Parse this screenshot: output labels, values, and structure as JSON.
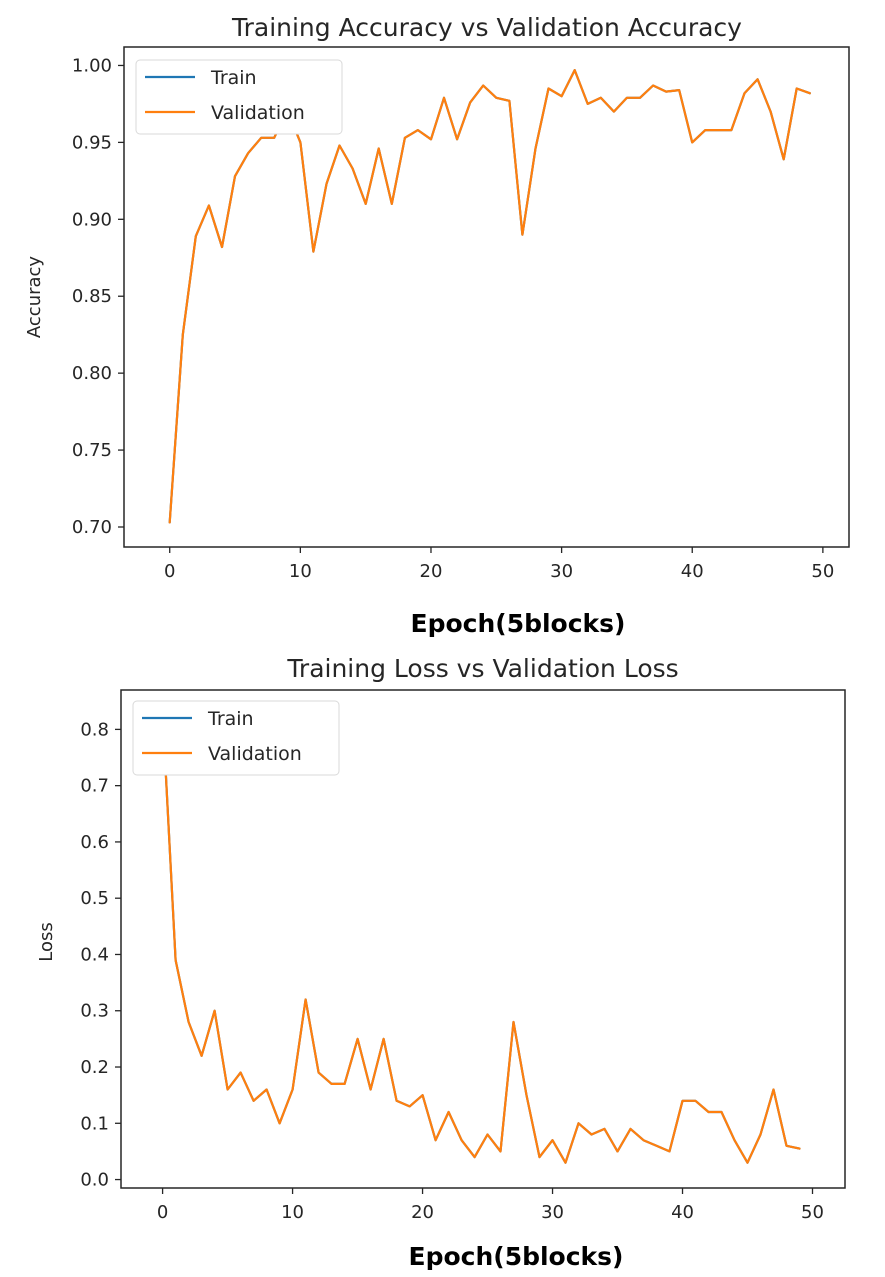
{
  "chart_data": [
    {
      "type": "line",
      "title": "Training Accuracy vs Validation Accuracy",
      "xlabel": "Epoch(5blocks)",
      "ylabel": "Accuracy",
      "xlim": [
        -3.5,
        52
      ],
      "ylim": [
        0.687,
        1.012
      ],
      "xticks": [
        0,
        10,
        20,
        30,
        40,
        50
      ],
      "xtick_labels": [
        "0",
        "10",
        "20",
        "30",
        "40",
        "50"
      ],
      "yticks": [
        0.7,
        0.75,
        0.8,
        0.85,
        0.9,
        0.95,
        1.0
      ],
      "ytick_labels": [
        "0.70",
        "0.75",
        "0.80",
        "0.85",
        "0.90",
        "0.95",
        "1.00"
      ],
      "legend_position": "top-left",
      "x": [
        0,
        1,
        2,
        3,
        4,
        5,
        6,
        7,
        8,
        9,
        10,
        11,
        12,
        13,
        14,
        15,
        16,
        17,
        18,
        19,
        20,
        21,
        22,
        23,
        24,
        25,
        26,
        27,
        28,
        29,
        30,
        31,
        32,
        33,
        34,
        35,
        36,
        37,
        38,
        39,
        40,
        41,
        42,
        43,
        44,
        45,
        46,
        47,
        48,
        49
      ],
      "series": [
        {
          "name": "Train",
          "color": "#1f77b4",
          "values": [
            0.703,
            0.825,
            0.889,
            0.909,
            0.882,
            0.928,
            0.943,
            0.953,
            0.953,
            0.971,
            0.95,
            0.879,
            0.923,
            0.948,
            0.933,
            0.91,
            0.946,
            0.91,
            0.953,
            0.958,
            0.952,
            0.979,
            0.952,
            0.976,
            0.987,
            0.979,
            0.977,
            0.89,
            0.946,
            0.985,
            0.98,
            0.997,
            0.975,
            0.979,
            0.97,
            0.979,
            0.979,
            0.987,
            0.983,
            0.984,
            0.95,
            0.958,
            0.958,
            0.958,
            0.982,
            0.991,
            0.97,
            0.939,
            0.985,
            0.982
          ]
        },
        {
          "name": "Validation",
          "color": "#ff7f0e",
          "values": [
            0.703,
            0.825,
            0.889,
            0.909,
            0.882,
            0.928,
            0.943,
            0.953,
            0.953,
            0.971,
            0.95,
            0.879,
            0.923,
            0.948,
            0.933,
            0.91,
            0.946,
            0.91,
            0.953,
            0.958,
            0.952,
            0.979,
            0.952,
            0.976,
            0.987,
            0.979,
            0.977,
            0.89,
            0.946,
            0.985,
            0.98,
            0.997,
            0.975,
            0.979,
            0.97,
            0.979,
            0.979,
            0.987,
            0.983,
            0.984,
            0.95,
            0.958,
            0.958,
            0.958,
            0.982,
            0.991,
            0.97,
            0.939,
            0.985,
            0.982
          ]
        }
      ]
    },
    {
      "type": "line",
      "title": "Training Loss vs Validation Loss",
      "xlabel": "Epoch(5blocks)",
      "ylabel": "Loss",
      "xlim": [
        -3.2,
        52.5
      ],
      "ylim": [
        -0.015,
        0.87
      ],
      "xticks": [
        0,
        10,
        20,
        30,
        40,
        50
      ],
      "xtick_labels": [
        "0",
        "10",
        "20",
        "30",
        "40",
        "50"
      ],
      "yticks": [
        0.0,
        0.1,
        0.2,
        0.3,
        0.4,
        0.5,
        0.6,
        0.7,
        0.8
      ],
      "ytick_labels": [
        "0.0",
        "0.1",
        "0.2",
        "0.3",
        "0.4",
        "0.5",
        "0.6",
        "0.7",
        "0.8"
      ],
      "legend_position": "top-left",
      "x": [
        0,
        1,
        2,
        3,
        4,
        5,
        6,
        7,
        8,
        9,
        10,
        11,
        12,
        13,
        14,
        15,
        16,
        17,
        18,
        19,
        20,
        21,
        22,
        23,
        24,
        25,
        26,
        27,
        28,
        29,
        30,
        31,
        32,
        33,
        34,
        35,
        36,
        37,
        38,
        39,
        40,
        41,
        42,
        43,
        44,
        45,
        46,
        47,
        48,
        49
      ],
      "series": [
        {
          "name": "Train",
          "color": "#1f77b4",
          "values": [
            0.83,
            0.39,
            0.28,
            0.22,
            0.3,
            0.16,
            0.19,
            0.14,
            0.16,
            0.1,
            0.16,
            0.32,
            0.19,
            0.17,
            0.17,
            0.25,
            0.16,
            0.25,
            0.14,
            0.13,
            0.15,
            0.07,
            0.12,
            0.07,
            0.04,
            0.08,
            0.05,
            0.28,
            0.15,
            0.04,
            0.07,
            0.03,
            0.1,
            0.08,
            0.09,
            0.05,
            0.09,
            0.07,
            0.06,
            0.05,
            0.14,
            0.14,
            0.12,
            0.12,
            0.07,
            0.03,
            0.08,
            0.16,
            0.06,
            0.055
          ]
        },
        {
          "name": "Validation",
          "color": "#ff7f0e",
          "values": [
            0.83,
            0.39,
            0.28,
            0.22,
            0.3,
            0.16,
            0.19,
            0.14,
            0.16,
            0.1,
            0.16,
            0.32,
            0.19,
            0.17,
            0.17,
            0.25,
            0.16,
            0.25,
            0.14,
            0.13,
            0.15,
            0.07,
            0.12,
            0.07,
            0.04,
            0.08,
            0.05,
            0.28,
            0.15,
            0.04,
            0.07,
            0.03,
            0.1,
            0.08,
            0.09,
            0.05,
            0.09,
            0.07,
            0.06,
            0.05,
            0.14,
            0.14,
            0.12,
            0.12,
            0.07,
            0.03,
            0.08,
            0.16,
            0.06,
            0.055
          ]
        }
      ]
    }
  ]
}
